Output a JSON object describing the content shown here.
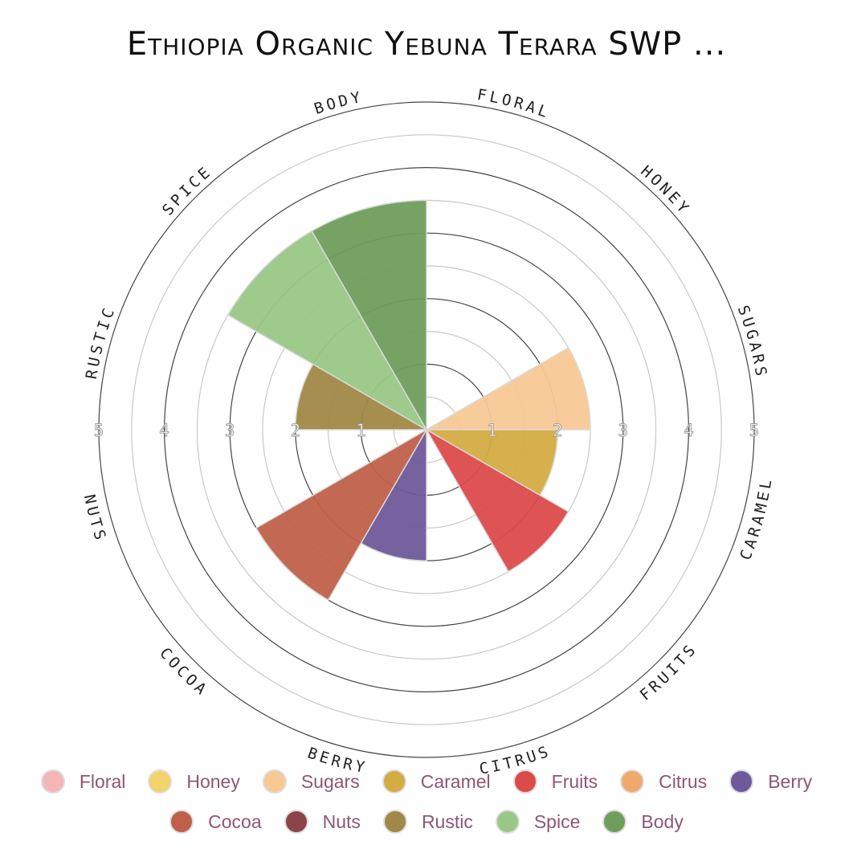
{
  "title": "Ethiopia Organic Yebuna Terara SWP ...",
  "chart_data": {
    "type": "polar-bar",
    "title": "Ethiopia Organic Yebuna Terara SWP ...",
    "categories": [
      "Floral",
      "Honey",
      "Sugars",
      "Caramel",
      "Fruits",
      "Citrus",
      "Berry",
      "Cocoa",
      "Nuts",
      "Rustic",
      "Spice",
      "Body"
    ],
    "axis_labels": [
      "FLORAL",
      "HONEY",
      "SUGARS",
      "CARAMEL",
      "FRUITS",
      "CITRUS",
      "BERRY",
      "COCOA",
      "NUTS",
      "RUSTIC",
      "SPICE",
      "BODY"
    ],
    "values": [
      0,
      0,
      2.5,
      2.0,
      2.5,
      0,
      2.0,
      3.0,
      0,
      2.0,
      3.5,
      3.5
    ],
    "colors": [
      "#f4b6b7",
      "#f3d36b",
      "#f8c895",
      "#d4ac42",
      "#dc4a4a",
      "#eeaa6b",
      "#6e5a9a",
      "#c0604a",
      "#8c4448",
      "#a08846",
      "#99c785",
      "#6f9e5c"
    ],
    "radial_ticks": [
      "1",
      "2",
      "3",
      "4",
      "5"
    ],
    "rmax": 5,
    "legend_position": "bottom"
  },
  "legend": {
    "row1": [
      {
        "label": "Floral",
        "color": "#f4b6b7"
      },
      {
        "label": "Honey",
        "color": "#f3d36b"
      },
      {
        "label": "Sugars",
        "color": "#f8c895"
      },
      {
        "label": "Caramel",
        "color": "#d4ac42"
      },
      {
        "label": "Fruits",
        "color": "#dc4a4a"
      },
      {
        "label": "Citrus",
        "color": "#eeaa6b"
      },
      {
        "label": "Berry",
        "color": "#6e5a9a"
      }
    ],
    "row2": [
      {
        "label": "Cocoa",
        "color": "#c0604a"
      },
      {
        "label": "Nuts",
        "color": "#8c4448"
      },
      {
        "label": "Rustic",
        "color": "#a08846"
      },
      {
        "label": "Spice",
        "color": "#99c785"
      },
      {
        "label": "Body",
        "color": "#6f9e5c"
      }
    ]
  }
}
